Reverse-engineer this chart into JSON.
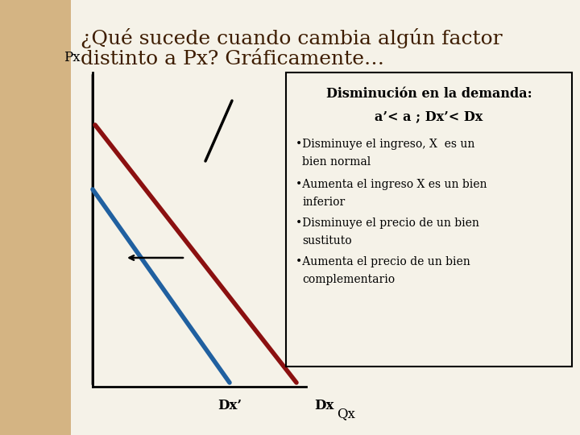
{
  "title_line1": "¿Qué sucede cuando cambia algún factor",
  "title_line2": "distinto a Px? Gráficamente…",
  "title_fontsize": 18,
  "title_color": "#3d1c00",
  "left_strip_color": "#d4b483",
  "main_bg_color": "#f0ece0",
  "white_bg_color": "#f5f2e8",
  "axis_color": "#000000",
  "px_label": "Px",
  "qx_label": "Qx",
  "dx_label": "Dx",
  "dxp_label": "Dx’",
  "box_title1": "Disminución en la demanda:",
  "box_title2": "a’< a ; Dx’< Dx",
  "box_bullet1": "•Disminuye el ingreso, X es un bien normal",
  "box_bullet2": "•Aumenta el ingreso X es un bien inferior",
  "box_bullet3": "•Disminuye el precio de un bien sustituto",
  "box_bullet4": "•Aumenta el precio de un bien complementario",
  "dx_color": "#8B1010",
  "dxp_color": "#2060A0",
  "diag_line_color": "#000000",
  "arrow_color": "#000000",
  "box_border_color": "#000000",
  "text_color": "#000000"
}
